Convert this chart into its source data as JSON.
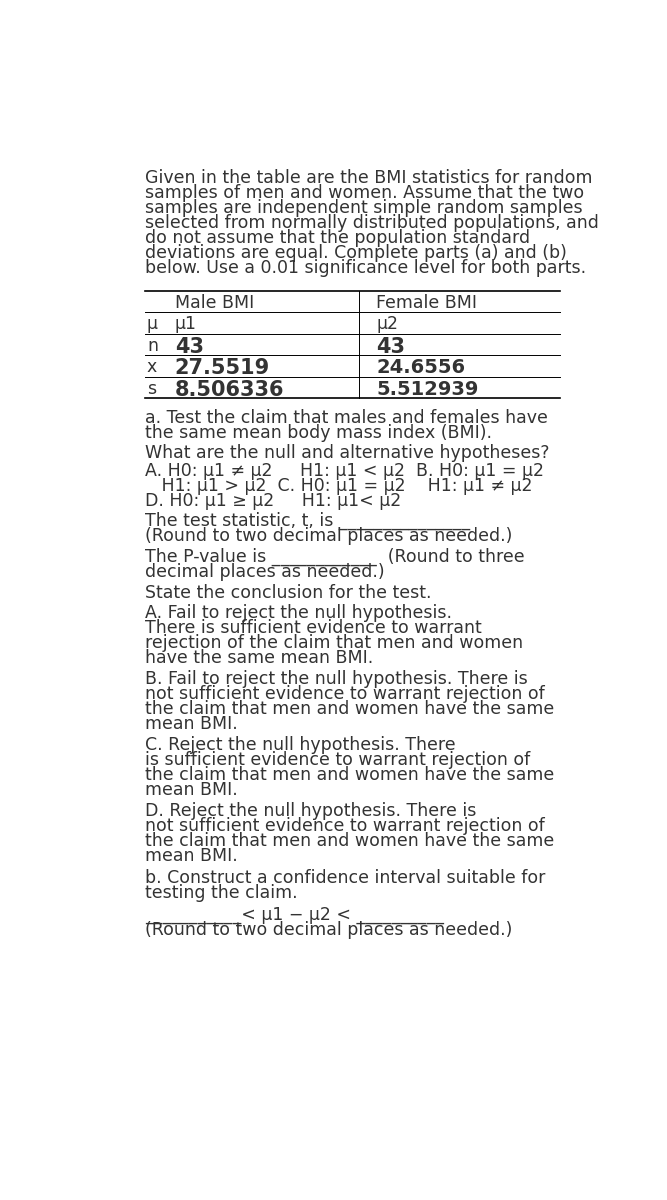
{
  "bg_color": "#ffffff",
  "text_color": "#333333",
  "intro_lines": [
    "Given in the table are the BMI statistics for random",
    "samples of men and women. Assume that the two",
    "samples are independent simple random samples",
    "selected from normally distributed populations, and",
    "do not assume that the population standard",
    "deviations are equal. Complete parts (a) and (b)",
    "below. Use a 0.01 significance level for both parts."
  ],
  "table_header": [
    "Male BMI",
    "Female BMI"
  ],
  "table_rows": [
    [
      "μ",
      "μ1",
      "μ2"
    ],
    [
      "n",
      "43",
      "43"
    ],
    [
      "x",
      "27.5519",
      "24.6556"
    ],
    [
      "s",
      "8.506336",
      "5.512939"
    ]
  ],
  "part_a_line1": "a. Test the claim that males and females have",
  "part_a_line2": "the same mean body mass index (BMI).",
  "hyp_q": "What are the null and alternative hypotheses?",
  "hyp_line1": "A. H0: μ1 ≠ μ2     H1: μ1 < μ2  B. H0: μ1 = μ2",
  "hyp_line2": "   H1: μ1 > μ2  C. H0: μ1 = μ2    H1: μ1 ≠ μ2",
  "hyp_line3": "D. H0: μ1 ≥ μ2     H1: μ1< μ2",
  "test_stat_line1": "The test statistic, t, is _______________",
  "test_stat_line2": "(Round to two decimal places as needed.)",
  "pvalue_line1": "The P-value is ____________  (Round to three",
  "pvalue_line2": "decimal places as needed.)",
  "state_conclusion": "State the conclusion for the test.",
  "optA_line1": "A. Fail to reject the null hypothesis.",
  "optA_line2": "There is sufficient evidence to warrant",
  "optA_line3": "rejection of the claim that men and women",
  "optA_line4": "have the same mean BMI.",
  "optB_line1": "B. Fail to reject the null hypothesis. There is",
  "optB_line2": "not sufficient evidence to warrant rejection of",
  "optB_line3": "the claim that men and women have the same",
  "optB_line4": "mean BMI.",
  "optC_line1": "C. Reject the null hypothesis. There",
  "optC_line2": "is sufficient evidence to warrant rejection of",
  "optC_line3": "the claim that men and women have the same",
  "optC_line4": "mean BMI.",
  "optD_line1": "D. Reject the null hypothesis. There is",
  "optD_line2": "not sufficient evidence to warrant rejection of",
  "optD_line3": "the claim that men and women have the same",
  "optD_line4": "mean BMI.",
  "partb_line1": "b. Construct a confidence interval suitable for",
  "partb_line2": "testing the claim.",
  "ci_line": "___________< μ1 − μ2 < __________",
  "ci_note": "(Round to two decimal places as needed.)",
  "fs": 12.5,
  "lh": 19.5
}
